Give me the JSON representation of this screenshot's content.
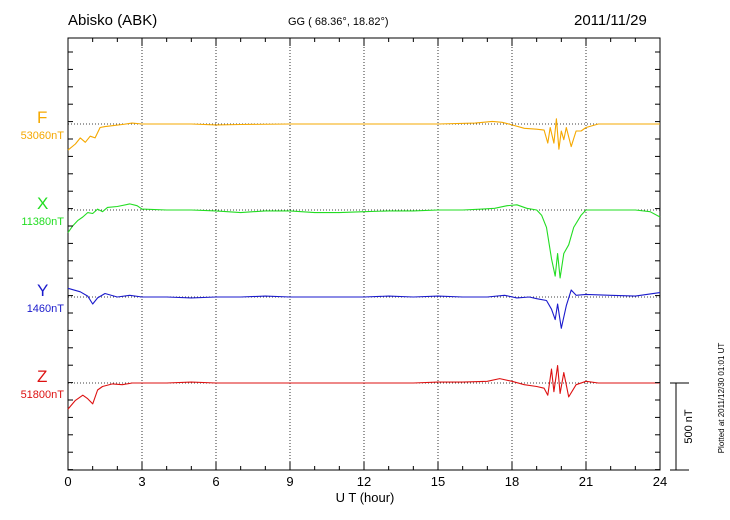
{
  "header": {
    "station": "Abisko (ABK)",
    "coords": "GG ( 68.36°,  18.82°)",
    "date": "2011/11/29"
  },
  "chart_data": {
    "type": "line",
    "xlabel": "U T (hour)",
    "xlim": [
      0,
      24
    ],
    "x_ticks": [
      "0",
      "3",
      "6",
      "9",
      "12",
      "15",
      "18",
      "21",
      "24"
    ],
    "scale_label": "500 nT",
    "scale_nT": 500,
    "plotted_note": "Plotted at 2011/12/30 01:01 UT",
    "grid": "dotted verticals at 3-hour intervals, dotted baselines per component",
    "series": [
      {
        "name": "F",
        "base": "53060nT",
        "color": "#f5a800",
        "points": [
          [
            0,
            -150
          ],
          [
            0.3,
            -115
          ],
          [
            0.5,
            -80
          ],
          [
            0.7,
            -105
          ],
          [
            0.9,
            -70
          ],
          [
            1.1,
            -80
          ],
          [
            1.3,
            -20
          ],
          [
            1.5,
            -15
          ],
          [
            1.8,
            -10
          ],
          [
            2.2,
            -3
          ],
          [
            2.6,
            5
          ],
          [
            3,
            0
          ],
          [
            4,
            0
          ],
          [
            5,
            0
          ],
          [
            6,
            -5
          ],
          [
            7,
            -3
          ],
          [
            9,
            0
          ],
          [
            11,
            0
          ],
          [
            13,
            0
          ],
          [
            15,
            0
          ],
          [
            16.5,
            5
          ],
          [
            17.2,
            15
          ],
          [
            17.6,
            10
          ],
          [
            18,
            -5
          ],
          [
            18.5,
            -25
          ],
          [
            19,
            -30
          ],
          [
            19.3,
            -35
          ],
          [
            19.45,
            -110
          ],
          [
            19.55,
            -20
          ],
          [
            19.7,
            -110
          ],
          [
            19.8,
            30
          ],
          [
            19.9,
            -145
          ],
          [
            20,
            -40
          ],
          [
            20.1,
            -90
          ],
          [
            20.2,
            -20
          ],
          [
            20.4,
            -130
          ],
          [
            20.6,
            -40
          ],
          [
            20.8,
            -40
          ],
          [
            21,
            -20
          ],
          [
            21.5,
            0
          ],
          [
            22,
            0
          ],
          [
            23,
            0
          ],
          [
            24,
            0
          ]
        ]
      },
      {
        "name": "X",
        "base": "11380nT",
        "color": "#22dd22",
        "points": [
          [
            0,
            -130
          ],
          [
            0.2,
            -90
          ],
          [
            0.4,
            -60
          ],
          [
            0.6,
            -40
          ],
          [
            0.8,
            -15
          ],
          [
            1,
            -20
          ],
          [
            1.2,
            5
          ],
          [
            1.4,
            -10
          ],
          [
            1.6,
            15
          ],
          [
            2,
            20
          ],
          [
            2.5,
            35
          ],
          [
            2.8,
            25
          ],
          [
            3,
            5
          ],
          [
            4,
            0
          ],
          [
            5,
            0
          ],
          [
            6,
            -5
          ],
          [
            7,
            -15
          ],
          [
            8,
            -5
          ],
          [
            9,
            -5
          ],
          [
            10,
            -15
          ],
          [
            11,
            -15
          ],
          [
            12,
            -10
          ],
          [
            13,
            -5
          ],
          [
            14,
            -5
          ],
          [
            15,
            0
          ],
          [
            16,
            0
          ],
          [
            16.8,
            5
          ],
          [
            17.3,
            10
          ],
          [
            17.8,
            25
          ],
          [
            18.2,
            30
          ],
          [
            18.6,
            10
          ],
          [
            19,
            0
          ],
          [
            19.2,
            -30
          ],
          [
            19.4,
            -100
          ],
          [
            19.6,
            -280
          ],
          [
            19.75,
            -380
          ],
          [
            19.85,
            -250
          ],
          [
            19.95,
            -390
          ],
          [
            20.1,
            -250
          ],
          [
            20.3,
            -200
          ],
          [
            20.5,
            -100
          ],
          [
            20.8,
            -30
          ],
          [
            21,
            0
          ],
          [
            22,
            0
          ],
          [
            23,
            0
          ],
          [
            23.6,
            -10
          ],
          [
            24,
            -40
          ]
        ]
      },
      {
        "name": "Y",
        "base": "1460nT",
        "color": "#1a1acc",
        "points": [
          [
            0,
            50
          ],
          [
            0.5,
            30
          ],
          [
            0.8,
            5
          ],
          [
            1.0,
            -40
          ],
          [
            1.2,
            -5
          ],
          [
            1.5,
            20
          ],
          [
            2,
            0
          ],
          [
            2.5,
            10
          ],
          [
            3,
            0
          ],
          [
            4,
            0
          ],
          [
            5,
            -5
          ],
          [
            6,
            0
          ],
          [
            7,
            0
          ],
          [
            8,
            5
          ],
          [
            9,
            0
          ],
          [
            10,
            0
          ],
          [
            11,
            0
          ],
          [
            12,
            0
          ],
          [
            13,
            5
          ],
          [
            14,
            0
          ],
          [
            15,
            5
          ],
          [
            16,
            0
          ],
          [
            17,
            0
          ],
          [
            17.7,
            10
          ],
          [
            18.2,
            -5
          ],
          [
            18.7,
            0
          ],
          [
            19,
            -10
          ],
          [
            19.4,
            -20
          ],
          [
            19.6,
            -70
          ],
          [
            19.75,
            -130
          ],
          [
            19.85,
            -40
          ],
          [
            20.0,
            -180
          ],
          [
            20.2,
            -50
          ],
          [
            20.4,
            40
          ],
          [
            20.6,
            10
          ],
          [
            21,
            15
          ],
          [
            22,
            10
          ],
          [
            23,
            5
          ],
          [
            24,
            25
          ]
        ]
      },
      {
        "name": "Z",
        "base": "51800nT",
        "color": "#dd1111",
        "points": [
          [
            0,
            -150
          ],
          [
            0.3,
            -100
          ],
          [
            0.6,
            -70
          ],
          [
            0.8,
            -90
          ],
          [
            1.0,
            -120
          ],
          [
            1.2,
            -40
          ],
          [
            1.4,
            -20
          ],
          [
            1.8,
            -5
          ],
          [
            2.2,
            -10
          ],
          [
            2.6,
            0
          ],
          [
            3,
            0
          ],
          [
            4,
            0
          ],
          [
            5,
            5
          ],
          [
            6,
            0
          ],
          [
            7,
            0
          ],
          [
            8,
            0
          ],
          [
            9,
            0
          ],
          [
            10,
            0
          ],
          [
            11,
            0
          ],
          [
            12,
            0
          ],
          [
            13,
            0
          ],
          [
            14,
            0
          ],
          [
            15,
            5
          ],
          [
            16,
            5
          ],
          [
            17,
            10
          ],
          [
            17.5,
            25
          ],
          [
            18,
            10
          ],
          [
            18.5,
            -10
          ],
          [
            19,
            -20
          ],
          [
            19.3,
            -30
          ],
          [
            19.45,
            -70
          ],
          [
            19.6,
            80
          ],
          [
            19.7,
            -50
          ],
          [
            19.85,
            100
          ],
          [
            19.95,
            -60
          ],
          [
            20.1,
            60
          ],
          [
            20.3,
            -80
          ],
          [
            20.6,
            -10
          ],
          [
            21,
            10
          ],
          [
            21.5,
            0
          ],
          [
            22,
            0
          ],
          [
            23,
            0
          ],
          [
            24,
            0
          ]
        ]
      }
    ]
  }
}
